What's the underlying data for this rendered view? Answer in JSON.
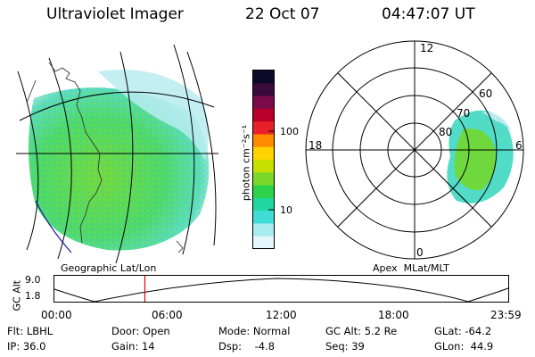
{
  "header": {
    "instrument": "Ultraviolet Imager",
    "date": "22 Oct 07",
    "time": "04:47:07 UT"
  },
  "geo_panel": {
    "label": "Geographic Lat/Lon"
  },
  "apex_panel": {
    "label": "Apex  MLat/MLT",
    "mlt_labels": [
      "12",
      "18",
      "6",
      "0"
    ],
    "lat_labels": [
      "60",
      "70",
      "80"
    ]
  },
  "colorbar": {
    "unit_label": "photon cm⁻²s⁻¹",
    "tick_labels": [
      "100",
      "10"
    ],
    "colors": [
      "#0c0a28",
      "#3a0a3a",
      "#7a0a4a",
      "#b8002a",
      "#e8202a",
      "#ff8a00",
      "#ffd200",
      "#c8e000",
      "#7cd82a",
      "#2ed24a",
      "#20d8a0",
      "#40dcd8",
      "#a8ecf0",
      "#e4f6fa"
    ]
  },
  "timeline": {
    "y_axis_label": "GC Alt",
    "y_ticks": [
      "9.0",
      "1.8"
    ],
    "x_ticks": [
      "00:00",
      "06:00",
      "12:00",
      "18:00",
      "23:59"
    ],
    "current_time_hours": 4.785
  },
  "status": {
    "row1": [
      "Flt: LBHL",
      "Door: Open",
      "Mode: Normal",
      "GC Alt: 5.2 Re",
      "GLat: -64.2"
    ],
    "row2": [
      "IP: 36.0",
      "Gain: 14",
      "Dsp:    -4.8",
      "Seq: 39",
      "GLon:  44.9"
    ]
  },
  "colors": {
    "aurora_green": "#6fd83c",
    "aurora_cyan": "#4fdcc8",
    "coast_blue": "#1a1aa0",
    "time_marker": "#e00000"
  }
}
